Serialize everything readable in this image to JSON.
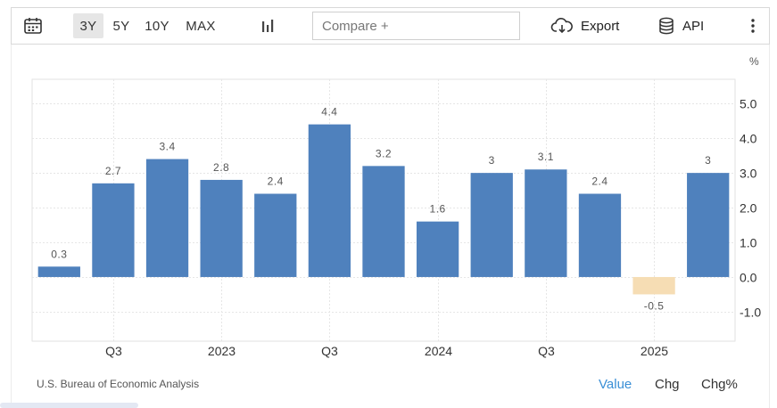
{
  "toolbar": {
    "ranges": [
      "3Y",
      "5Y",
      "10Y",
      "MAX"
    ],
    "active_range": "3Y",
    "compare_placeholder": "Compare +",
    "export_label": "Export",
    "api_label": "API",
    "icons": {
      "calendar": "calendar-icon",
      "chart_type": "bar-chart-icon",
      "export": "cloud-download-icon",
      "api": "database-icon",
      "more": "more-vertical-icon"
    }
  },
  "unit_label": "%",
  "chart_data": {
    "type": "bar",
    "categories": [
      "2022 Q2",
      "2022 Q3",
      "2022 Q4",
      "2023 Q1",
      "2023 Q2",
      "2023 Q3",
      "2023 Q4",
      "2024 Q1",
      "2024 Q2",
      "2024 Q3",
      "2024 Q4",
      "2025 Q1",
      "2025 Q2"
    ],
    "values": [
      0.3,
      2.7,
      3.4,
      2.8,
      2.4,
      4.4,
      3.2,
      1.6,
      3,
      3.1,
      2.4,
      -0.5,
      3
    ],
    "value_labels": [
      "0.3",
      "2.7",
      "3.4",
      "2.8",
      "2.4",
      "4.4",
      "3.2",
      "1.6",
      "3",
      "3.1",
      "2.4",
      "-0.5",
      "3"
    ],
    "x_tick_labels": [
      "Q3",
      "2023",
      "Q3",
      "2024",
      "Q3",
      "2025"
    ],
    "x_tick_categories": [
      1,
      3,
      5,
      7,
      9,
      11
    ],
    "y_ticks": [
      5.0,
      4.0,
      3.0,
      2.0,
      1.0,
      0.0,
      -1.0
    ],
    "y_tick_labels": [
      "5.0",
      "4.0",
      "3.0",
      "2.0",
      "1.0",
      "0.0",
      "-1.0"
    ],
    "ylim": [
      -1.85,
      5.7
    ],
    "colors": {
      "positive": "#4f81bd",
      "negative": "#f6ddb4"
    },
    "grid": true
  },
  "source": "U.S. Bureau of Economic Analysis",
  "modes": [
    "Value",
    "Chg",
    "Chg%"
  ],
  "active_mode": "Value",
  "colors": {
    "accent": "#3a8fd6"
  }
}
